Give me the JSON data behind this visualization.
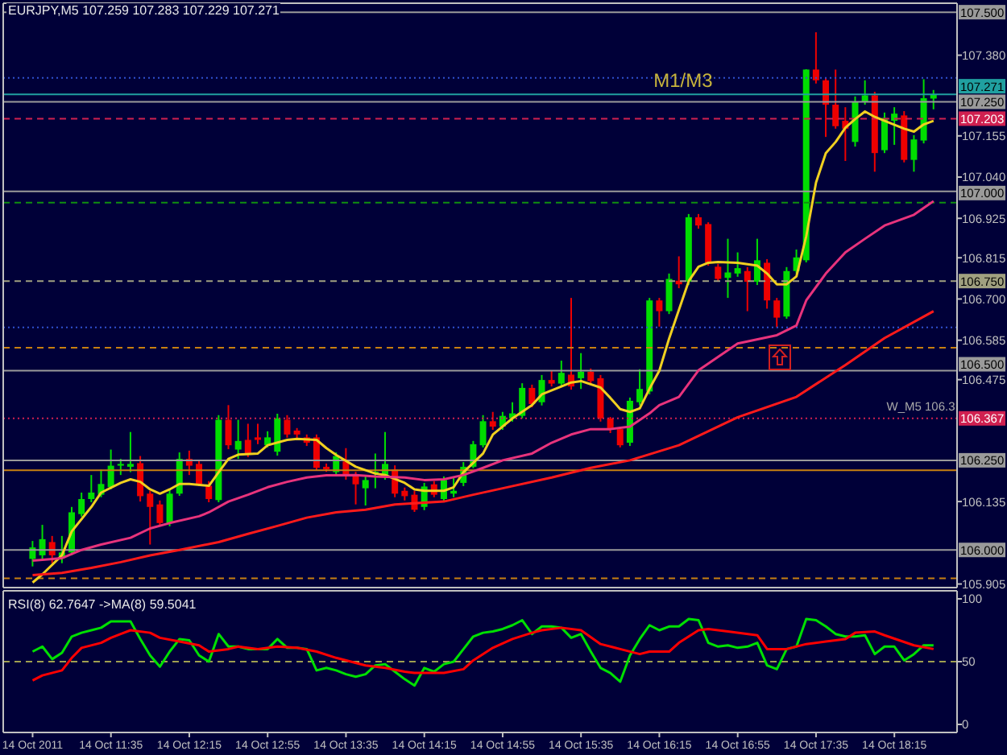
{
  "chart_data": [
    {
      "type": "candlestick",
      "title": "EURJPY,M5 107.259 107.283 107.229 107.271",
      "tick_labels": "y",
      "x": [
        "2011-10-14T10:55",
        "2011-10-14T11:00",
        "2011-10-14T11:05",
        "2011-10-14T11:10",
        "2011-10-14T11:15",
        "2011-10-14T11:20",
        "2011-10-14T11:25",
        "2011-10-14T11:30",
        "2011-10-14T11:35",
        "2011-10-14T11:40",
        "2011-10-14T11:45",
        "2011-10-14T11:50",
        "2011-10-14T11:55",
        "2011-10-14T12:00",
        "2011-10-14T12:05",
        "2011-10-14T12:10",
        "2011-10-14T12:15",
        "2011-10-14T12:20",
        "2011-10-14T12:25",
        "2011-10-14T12:30",
        "2011-10-14T12:35",
        "2011-10-14T12:40",
        "2011-10-14T12:45",
        "2011-10-14T12:50",
        "2011-10-14T12:55",
        "2011-10-14T13:00",
        "2011-10-14T13:05",
        "2011-10-14T13:10",
        "2011-10-14T13:15",
        "2011-10-14T13:20",
        "2011-10-14T13:25",
        "2011-10-14T13:30",
        "2011-10-14T13:35",
        "2011-10-14T13:40",
        "2011-10-14T13:45",
        "2011-10-14T13:50",
        "2011-10-14T13:55",
        "2011-10-14T14:00",
        "2011-10-14T14:05",
        "2011-10-14T14:10",
        "2011-10-14T14:15",
        "2011-10-14T14:20",
        "2011-10-14T14:25",
        "2011-10-14T14:30",
        "2011-10-14T14:35",
        "2011-10-14T14:40",
        "2011-10-14T14:45",
        "2011-10-14T14:50",
        "2011-10-14T14:55",
        "2011-10-14T15:00",
        "2011-10-14T15:05",
        "2011-10-14T15:10",
        "2011-10-14T15:15",
        "2011-10-14T15:20",
        "2011-10-14T15:25",
        "2011-10-14T15:30",
        "2011-10-14T15:35",
        "2011-10-14T15:40",
        "2011-10-14T15:45",
        "2011-10-14T15:50",
        "2011-10-14T15:55",
        "2011-10-14T16:00",
        "2011-10-14T16:05",
        "2011-10-14T16:10",
        "2011-10-14T16:15",
        "2011-10-14T16:20",
        "2011-10-14T16:25",
        "2011-10-14T16:30",
        "2011-10-14T16:35",
        "2011-10-14T16:40",
        "2011-10-14T16:45",
        "2011-10-14T16:50",
        "2011-10-14T16:55",
        "2011-10-14T17:00",
        "2011-10-14T17:05",
        "2011-10-14T17:10",
        "2011-10-14T17:15",
        "2011-10-14T17:20",
        "2011-10-14T17:25",
        "2011-10-14T17:30",
        "2011-10-14T17:35",
        "2011-10-14T17:40",
        "2011-10-14T17:45",
        "2011-10-14T17:50",
        "2011-10-14T17:55",
        "2011-10-14T18:00",
        "2011-10-14T18:05",
        "2011-10-14T18:10",
        "2011-10-14T18:15",
        "2011-10-14T18:20",
        "2011-10-14T18:25",
        "2011-10-14T18:30",
        "2011-10-14T18:35"
      ],
      "ohlc": [
        [
          105.975,
          106.025,
          105.954,
          106.007
        ],
        [
          105.985,
          106.07,
          105.972,
          106.03
        ],
        [
          106.022,
          106.039,
          105.963,
          105.985
        ],
        [
          105.977,
          106.039,
          105.963,
          105.993
        ],
        [
          105.993,
          106.12,
          105.985,
          106.105
        ],
        [
          106.1,
          106.16,
          106.093,
          106.142
        ],
        [
          106.142,
          106.209,
          106.133,
          106.16
        ],
        [
          106.154,
          106.224,
          106.147,
          106.184
        ],
        [
          106.175,
          106.28,
          106.169,
          106.235
        ],
        [
          106.235,
          106.254,
          106.209,
          106.24
        ],
        [
          106.232,
          106.329,
          106.217,
          106.24
        ],
        [
          106.242,
          106.262,
          106.135,
          106.15
        ],
        [
          106.157,
          106.165,
          106.015,
          106.12
        ],
        [
          106.127,
          106.138,
          106.066,
          106.075
        ],
        [
          106.075,
          106.169,
          106.066,
          106.157
        ],
        [
          106.157,
          106.272,
          106.151,
          106.254
        ],
        [
          106.254,
          106.277,
          106.209,
          106.235
        ],
        [
          106.24,
          106.25,
          106.178,
          106.184
        ],
        [
          106.179,
          106.192,
          106.133,
          106.142
        ],
        [
          106.139,
          106.376,
          106.133,
          106.363
        ],
        [
          106.363,
          106.404,
          106.281,
          106.292
        ],
        [
          106.28,
          106.363,
          106.254,
          106.304
        ],
        [
          106.307,
          106.352,
          106.259,
          106.269
        ],
        [
          106.314,
          106.352,
          106.295,
          106.307
        ],
        [
          106.292,
          106.331,
          106.286,
          106.314
        ],
        [
          106.274,
          106.38,
          106.263,
          106.367
        ],
        [
          106.363,
          106.376,
          106.313,
          106.322
        ],
        [
          106.333,
          106.34,
          106.308,
          106.322
        ],
        [
          106.314,
          106.322,
          106.29,
          106.299
        ],
        [
          106.314,
          106.322,
          106.223,
          106.229
        ],
        [
          106.232,
          106.241,
          106.218,
          106.225
        ],
        [
          106.217,
          106.272,
          106.209,
          106.262
        ],
        [
          106.247,
          106.284,
          106.196,
          106.205
        ],
        [
          106.209,
          106.218,
          106.127,
          106.183
        ],
        [
          106.172,
          106.205,
          106.124,
          106.195
        ],
        [
          106.214,
          106.269,
          106.172,
          106.218
        ],
        [
          106.205,
          106.329,
          106.196,
          106.24
        ],
        [
          106.224,
          106.236,
          106.147,
          106.157
        ],
        [
          106.165,
          106.174,
          106.138,
          106.15
        ],
        [
          106.154,
          106.165,
          106.106,
          106.112
        ],
        [
          106.12,
          106.187,
          106.111,
          106.177
        ],
        [
          106.183,
          106.192,
          106.147,
          106.154
        ],
        [
          106.142,
          106.205,
          106.133,
          106.195
        ],
        [
          106.157,
          106.202,
          106.147,
          106.165
        ],
        [
          106.187,
          106.245,
          106.178,
          106.232
        ],
        [
          106.232,
          106.304,
          106.228,
          106.295
        ],
        [
          106.292,
          106.376,
          106.286,
          106.359
        ],
        [
          106.359,
          106.385,
          106.335,
          106.344
        ],
        [
          106.344,
          106.385,
          106.335,
          106.374
        ],
        [
          106.367,
          106.412,
          106.358,
          106.381
        ],
        [
          106.374,
          106.465,
          106.367,
          106.452
        ],
        [
          106.452,
          106.461,
          106.398,
          106.407
        ],
        [
          106.412,
          106.488,
          106.403,
          106.474
        ],
        [
          106.474,
          106.501,
          106.456,
          106.464
        ],
        [
          106.464,
          106.528,
          106.456,
          106.494
        ],
        [
          106.489,
          106.703,
          106.447,
          106.456
        ],
        [
          106.479,
          106.549,
          106.449,
          106.497
        ],
        [
          106.497,
          106.506,
          106.461,
          106.471
        ],
        [
          106.479,
          106.488,
          106.358,
          106.367
        ],
        [
          106.367,
          106.371,
          106.326,
          106.337
        ],
        [
          106.337,
          106.344,
          106.286,
          106.292
        ],
        [
          106.299,
          106.425,
          106.29,
          106.416
        ],
        [
          106.412,
          106.504,
          106.403,
          106.449
        ],
        [
          106.442,
          106.703,
          106.434,
          106.696
        ],
        [
          106.696,
          106.703,
          106.623,
          106.666
        ],
        [
          106.666,
          106.771,
          106.658,
          106.756
        ],
        [
          106.751,
          106.819,
          106.73,
          106.741
        ],
        [
          106.748,
          106.937,
          106.739,
          106.928
        ],
        [
          106.928,
          106.937,
          106.896,
          106.905
        ],
        [
          106.909,
          106.914,
          106.793,
          106.801
        ],
        [
          106.79,
          106.798,
          106.748,
          106.756
        ],
        [
          106.759,
          106.868,
          106.703,
          106.774
        ],
        [
          106.771,
          106.83,
          106.762,
          106.786
        ],
        [
          106.778,
          106.789,
          106.666,
          106.748
        ],
        [
          106.748,
          106.868,
          106.739,
          106.808
        ],
        [
          106.801,
          106.811,
          106.673,
          106.696
        ],
        [
          106.696,
          106.703,
          106.621,
          106.648
        ],
        [
          106.651,
          106.789,
          106.645,
          106.778
        ],
        [
          106.778,
          106.838,
          106.771,
          106.816
        ],
        [
          106.808,
          107.341,
          106.802,
          107.34
        ],
        [
          107.34,
          107.444,
          107.301,
          107.31
        ],
        [
          107.31,
          107.318,
          107.152,
          107.242
        ],
        [
          107.242,
          107.34,
          107.175,
          107.182
        ],
        [
          107.197,
          107.235,
          107.085,
          107.175
        ],
        [
          107.138,
          107.265,
          107.125,
          107.25
        ],
        [
          107.25,
          107.31,
          107.242,
          107.268
        ],
        [
          107.268,
          107.278,
          107.055,
          107.107
        ],
        [
          107.115,
          107.22,
          107.107,
          107.205
        ],
        [
          107.197,
          107.235,
          107.13,
          107.217
        ],
        [
          107.212,
          107.224,
          107.081,
          107.088
        ],
        [
          107.088,
          107.157,
          107.055,
          107.145
        ],
        [
          107.142,
          107.313,
          107.134,
          107.26
        ],
        [
          107.259,
          107.283,
          107.229,
          107.271
        ]
      ],
      "colors": [
        "#00dd00",
        "#00dd00",
        "#ee0000",
        "#00dd00",
        "#00dd00",
        "#00dd00",
        "#00dd00",
        "#00dd00",
        "#00dd00",
        "#00dd00",
        "#00dd00",
        "#ee0000",
        "#ee0000",
        "#ee0000",
        "#00dd00",
        "#00dd00",
        "#ee0000",
        "#ee0000",
        "#ee0000",
        "#00dd00",
        "#ee0000",
        "#00dd00",
        "#ee0000",
        "#ee0000",
        "#00dd00",
        "#00dd00",
        "#ee0000",
        "#ee0000",
        "#ee0000",
        "#ee0000",
        "#ee0000",
        "#00dd00",
        "#ee0000",
        "#ee0000",
        "#00dd00",
        "#00dd00",
        "#00dd00",
        "#ee0000",
        "#ee0000",
        "#ee0000",
        "#00dd00",
        "#ee0000",
        "#00dd00",
        "#00dd00",
        "#00dd00",
        "#00dd00",
        "#00dd00",
        "#ee0000",
        "#00dd00",
        "#00dd00",
        "#00dd00",
        "#ee0000",
        "#00dd00",
        "#ee0000",
        "#00dd00",
        "#ee0000",
        "#00dd00",
        "#ee0000",
        "#ee0000",
        "#ee0000",
        "#ee0000",
        "#00dd00",
        "#00dd00",
        "#00dd00",
        "#ee0000",
        "#00dd00",
        "#ee0000",
        "#00dd00",
        "#ee0000",
        "#ee0000",
        "#ee0000",
        "#00dd00",
        "#00dd00",
        "#ee0000",
        "#00dd00",
        "#ee0000",
        "#ee0000",
        "#00dd00",
        "#00dd00",
        "#00dd00",
        "#ee0000",
        "#ee0000",
        "#ee0000",
        "#ee0000",
        "#00dd00",
        "#00dd00",
        "#ee0000",
        "#00dd00",
        "#00dd00",
        "#ee0000",
        "#00dd00",
        "#00dd00",
        "#00dd00"
      ],
      "xlim": [
        "2011-10-14T10:40",
        "2011-10-14T18:47"
      ],
      "ylim": [
        105.895,
        107.525
      ],
      "yticks": [
        {
          "value": 107.38,
          "label": "107.380"
        },
        107.155,
        {
          "value": 107.04,
          "label": "107.040"
        },
        106.925,
        106.815,
        {
          "value": 106.7,
          "label": "106.700"
        },
        106.585,
        106.475,
        106.135,
        105.905
      ],
      "series": [
        {
          "type": "line",
          "color": "#f0d020",
          "x": [
            "2011-10-14T10:55",
            "2011-10-14T11:00",
            "2011-10-14T11:10",
            "2011-10-14T11:15",
            "2011-10-14T11:25",
            "2011-10-14T11:30",
            "2011-10-14T11:40",
            "2011-10-14T11:45",
            "2011-10-14T11:50",
            "2011-10-14T11:55",
            "2011-10-14T12:00",
            "2011-10-14T12:05",
            "2011-10-14T12:10",
            "2011-10-14T12:15",
            "2011-10-14T12:25",
            "2011-10-14T12:30",
            "2011-10-14T12:35",
            "2011-10-14T12:40",
            "2011-10-14T12:50",
            "2011-10-14T12:55",
            "2011-10-14T13:05",
            "2011-10-14T13:10",
            "2011-10-14T13:20",
            "2011-10-14T13:25",
            "2011-10-14T13:30",
            "2011-10-14T13:40",
            "2011-10-14T13:50",
            "2011-10-14T13:55",
            "2011-10-14T14:05",
            "2011-10-14T14:10",
            "2011-10-14T14:15",
            "2011-10-14T14:25",
            "2011-10-14T14:30",
            "2011-10-14T14:35",
            "2011-10-14T14:45",
            "2011-10-14T14:50",
            "2011-10-14T15:00",
            "2011-10-14T15:10",
            "2011-10-14T15:15",
            "2011-10-14T15:25",
            "2011-10-14T15:30",
            "2011-10-14T15:35",
            "2011-10-14T15:45",
            "2011-10-14T15:50",
            "2011-10-14T15:55",
            "2011-10-14T16:00",
            "2011-10-14T16:05",
            "2011-10-14T16:10",
            "2011-10-14T16:15",
            "2011-10-14T16:20",
            "2011-10-14T16:30",
            "2011-10-14T16:35",
            "2011-10-14T16:40",
            "2011-10-14T16:45",
            "2011-10-14T16:55",
            "2011-10-14T17:05",
            "2011-10-14T17:10",
            "2011-10-14T17:15",
            "2011-10-14T17:20",
            "2011-10-14T17:25",
            "2011-10-14T17:30",
            "2011-10-14T17:35",
            "2011-10-14T17:40",
            "2011-10-14T17:45",
            "2011-10-14T17:50",
            "2011-10-14T17:55",
            "2011-10-14T18:00",
            "2011-10-14T18:05",
            "2011-10-14T18:10",
            "2011-10-14T18:20",
            "2011-10-14T18:25",
            "2011-10-14T18:30",
            "2011-10-14T18:35"
          ],
          "values": [
            105.909,
            105.932,
            105.985,
            106.052,
            106.12,
            106.16,
            106.187,
            106.197,
            106.19,
            106.169,
            106.157,
            106.169,
            106.184,
            106.184,
            106.179,
            106.217,
            106.254,
            106.266,
            106.269,
            106.292,
            106.307,
            106.31,
            106.307,
            106.284,
            106.265,
            106.232,
            106.213,
            106.209,
            106.187,
            106.169,
            106.165,
            106.165,
            106.175,
            106.217,
            106.269,
            106.322,
            106.367,
            106.404,
            106.434,
            106.456,
            106.467,
            106.471,
            106.453,
            106.424,
            106.393,
            106.385,
            106.395,
            106.45,
            106.5,
            106.59,
            106.75,
            106.79,
            106.801,
            106.803,
            106.801,
            106.793,
            106.771,
            106.741,
            106.741,
            106.763,
            106.875,
            107.025,
            107.107,
            107.138,
            107.178,
            107.202,
            107.223,
            107.208,
            107.197,
            107.175,
            107.167,
            107.187,
            107.197
          ]
        },
        {
          "type": "line",
          "color": "#e8337c",
          "x": [
            "2011-10-14T10:55",
            "2011-10-14T11:10",
            "2011-10-14T11:20",
            "2011-10-14T11:30",
            "2011-10-14T11:45",
            "2011-10-14T11:55",
            "2011-10-14T12:05",
            "2011-10-14T12:20",
            "2011-10-14T12:25",
            "2011-10-14T12:35",
            "2011-10-14T12:45",
            "2011-10-14T12:55",
            "2011-10-14T13:05",
            "2011-10-14T13:15",
            "2011-10-14T13:25",
            "2011-10-14T13:40",
            "2011-10-14T13:50",
            "2011-10-14T14:05",
            "2011-10-14T14:15",
            "2011-10-14T14:25",
            "2011-10-14T14:35",
            "2011-10-14T14:45",
            "2011-10-14T14:55",
            "2011-10-14T15:10",
            "2011-10-14T15:20",
            "2011-10-14T15:30",
            "2011-10-14T15:40",
            "2011-10-14T15:50",
            "2011-10-14T16:00",
            "2011-10-14T16:10",
            "2011-10-14T16:15",
            "2011-10-14T16:25",
            "2011-10-14T16:35",
            "2011-10-14T16:55",
            "2011-10-14T17:15",
            "2011-10-14T17:25",
            "2011-10-14T17:30",
            "2011-10-14T17:40",
            "2011-10-14T17:50",
            "2011-10-14T18:00",
            "2011-10-14T18:10",
            "2011-10-14T18:25",
            "2011-10-14T18:35"
          ],
          "values": [
            105.97,
            105.977,
            106.0,
            106.015,
            106.034,
            106.06,
            106.075,
            106.094,
            106.105,
            106.135,
            106.154,
            106.175,
            106.19,
            106.202,
            106.208,
            106.209,
            106.205,
            106.202,
            106.195,
            106.197,
            106.209,
            106.229,
            106.25,
            106.269,
            106.299,
            106.322,
            106.337,
            106.337,
            106.344,
            106.381,
            106.404,
            106.427,
            106.501,
            106.576,
            106.599,
            106.626,
            106.696,
            106.771,
            106.83,
            106.868,
            106.905,
            106.935,
            106.973
          ]
        },
        {
          "type": "line",
          "color": "#ff1a1a",
          "x": [
            "2011-10-14T10:55",
            "2011-10-14T11:10",
            "2011-10-14T11:25",
            "2011-10-14T11:40",
            "2011-10-14T11:55",
            "2011-10-14T12:10",
            "2011-10-14T12:30",
            "2011-10-14T12:45",
            "2011-10-14T13:00",
            "2011-10-14T13:15",
            "2011-10-14T13:30",
            "2011-10-14T13:45",
            "2011-10-14T14:00",
            "2011-10-14T14:25",
            "2011-10-14T14:40",
            "2011-10-14T14:55",
            "2011-10-14T15:20",
            "2011-10-14T15:40",
            "2011-10-14T16:00",
            "2011-10-14T16:25",
            "2011-10-14T16:55",
            "2011-10-14T17:25",
            "2011-10-14T17:50",
            "2011-10-14T18:10",
            "2011-10-14T18:35"
          ],
          "values": [
            105.93,
            105.936,
            105.95,
            105.966,
            105.985,
            106.0,
            106.022,
            106.045,
            106.067,
            106.09,
            106.105,
            106.112,
            106.127,
            106.135,
            106.154,
            106.172,
            106.202,
            106.229,
            106.25,
            106.292,
            106.37,
            106.427,
            106.516,
            106.591,
            106.666
          ]
        }
      ],
      "ref_lines": [
        {
          "axis": "y",
          "value": 107.5,
          "label": "107.500",
          "color": "#9a9a9a"
        },
        {
          "axis": "y",
          "value": 107.317,
          "color": "#3050d0",
          "line_style": "dotted"
        },
        {
          "axis": "y",
          "value": 107.25,
          "label": "107.250",
          "color": "#9a9a9a"
        },
        {
          "axis": "y",
          "value": 107.203,
          "label": "107.203",
          "color": "#d02050",
          "line_style": "dashed"
        },
        {
          "axis": "y",
          "value": 107,
          "label": "107.000",
          "color": "#9a9a9a"
        },
        {
          "axis": "y",
          "value": 106.969,
          "color": "#109010",
          "line_style": "dashed"
        },
        {
          "axis": "y",
          "value": 106.75,
          "label": "106.750",
          "color": "#a0a080",
          "line_style": "dashed"
        },
        {
          "axis": "y",
          "value": 106.621,
          "color": "#3050d0",
          "line_style": "dotted"
        },
        {
          "axis": "y",
          "value": 106.564,
          "color": "#c88010",
          "line_style": "dashed"
        },
        {
          "axis": "y",
          "value": 106.5,
          "label": "106.500",
          "color": "#9a9a9a"
        },
        {
          "axis": "y",
          "value": 106.367,
          "label": "106.367",
          "color": "#d02050",
          "line_style": "dotted"
        },
        {
          "axis": "y",
          "value": 106.25,
          "label": "106.250",
          "color": "#9a9a9a"
        },
        {
          "axis": "y",
          "value": 106.222,
          "color": "#c88010"
        },
        {
          "axis": "y",
          "value": 106,
          "label": "106.000",
          "color": "#9a9a9a"
        },
        {
          "axis": "y",
          "value": 105.921,
          "color": "#c88010",
          "line_style": "dashed"
        },
        {
          "axis": "y",
          "value": 107.271,
          "label": "107.271",
          "color": "#20a0a0"
        }
      ],
      "annotations": [
        {
          "text": "M1/M3",
          "x": "2011-10-14T16:12",
          "y": 107.271
        },
        {
          "text": "W_M5 106.3",
          "x": "2011-10-14T18:11",
          "y": 106.367
        }
      ]
    },
    {
      "type": "line",
      "title": "RSI(8) 62.7647 ->MA(8) 59.5041",
      "x": [
        "2011-10-14T10:55",
        "2011-10-14T11:00",
        "2011-10-14T11:05",
        "2011-10-14T11:10",
        "2011-10-14T11:15",
        "2011-10-14T11:20",
        "2011-10-14T11:25",
        "2011-10-14T11:30",
        "2011-10-14T11:35",
        "2011-10-14T11:40",
        "2011-10-14T11:45",
        "2011-10-14T11:50",
        "2011-10-14T11:55",
        "2011-10-14T12:00",
        "2011-10-14T12:05",
        "2011-10-14T12:10",
        "2011-10-14T12:15",
        "2011-10-14T12:20",
        "2011-10-14T12:25",
        "2011-10-14T12:30",
        "2011-10-14T12:35",
        "2011-10-14T12:40",
        "2011-10-14T12:45",
        "2011-10-14T12:50",
        "2011-10-14T12:55",
        "2011-10-14T13:00",
        "2011-10-14T13:05",
        "2011-10-14T13:10",
        "2011-10-14T13:15",
        "2011-10-14T13:20",
        "2011-10-14T13:25",
        "2011-10-14T13:30",
        "2011-10-14T13:35",
        "2011-10-14T13:40",
        "2011-10-14T13:45",
        "2011-10-14T13:50",
        "2011-10-14T13:55",
        "2011-10-14T14:00",
        "2011-10-14T14:05",
        "2011-10-14T14:10",
        "2011-10-14T14:15",
        "2011-10-14T14:20",
        "2011-10-14T14:25",
        "2011-10-14T14:30",
        "2011-10-14T14:35",
        "2011-10-14T14:40",
        "2011-10-14T14:45",
        "2011-10-14T14:50",
        "2011-10-14T14:55",
        "2011-10-14T15:00",
        "2011-10-14T15:05",
        "2011-10-14T15:10",
        "2011-10-14T15:15",
        "2011-10-14T15:20",
        "2011-10-14T15:25",
        "2011-10-14T15:30",
        "2011-10-14T15:35",
        "2011-10-14T15:40",
        "2011-10-14T15:45",
        "2011-10-14T15:50",
        "2011-10-14T15:55",
        "2011-10-14T16:00",
        "2011-10-14T16:05",
        "2011-10-14T16:10",
        "2011-10-14T16:15",
        "2011-10-14T16:20",
        "2011-10-14T16:25",
        "2011-10-14T16:30",
        "2011-10-14T16:35",
        "2011-10-14T16:40",
        "2011-10-14T16:45",
        "2011-10-14T16:50",
        "2011-10-14T16:55",
        "2011-10-14T17:00",
        "2011-10-14T17:05",
        "2011-10-14T17:10",
        "2011-10-14T17:15",
        "2011-10-14T17:20",
        "2011-10-14T17:25",
        "2011-10-14T17:30",
        "2011-10-14T17:35",
        "2011-10-14T17:40",
        "2011-10-14T17:45",
        "2011-10-14T17:50",
        "2011-10-14T17:55",
        "2011-10-14T18:00",
        "2011-10-14T18:05",
        "2011-10-14T18:10",
        "2011-10-14T18:15",
        "2011-10-14T18:20",
        "2011-10-14T18:25",
        "2011-10-14T18:30",
        "2011-10-14T18:35"
      ],
      "xlim": [
        "2011-10-14T10:40",
        "2011-10-14T18:47"
      ],
      "xticks": [
        {
          "value": "2011-10-14T10:55",
          "label": "14 Oct 2011"
        },
        {
          "value": "2011-10-14T11:35",
          "label": "14 Oct 11:35"
        },
        {
          "value": "2011-10-14T12:15",
          "label": "14 Oct 12:15"
        },
        {
          "value": "2011-10-14T12:55",
          "label": "14 Oct 12:55"
        },
        {
          "value": "2011-10-14T13:35",
          "label": "14 Oct 13:35"
        },
        {
          "value": "2011-10-14T14:15",
          "label": "14 Oct 14:15"
        },
        {
          "value": "2011-10-14T14:55",
          "label": "14 Oct 14:55"
        },
        {
          "value": "2011-10-14T15:35",
          "label": "14 Oct 15:35"
        },
        {
          "value": "2011-10-14T16:15",
          "label": "14 Oct 16:15"
        },
        {
          "value": "2011-10-14T16:55",
          "label": "14 Oct 16:55"
        },
        {
          "value": "2011-10-14T17:35",
          "label": "14 Oct 17:35"
        },
        {
          "value": "2011-10-14T18:15",
          "label": "14 Oct 18:15"
        }
      ],
      "ylim": [
        -6.4,
        106.4
      ],
      "yticks": [
        0,
        50,
        100
      ],
      "series": [
        {
          "color": "#00e000",
          "values": [
            58,
            62,
            52,
            57,
            70,
            73,
            75,
            77,
            82,
            82,
            82,
            68,
            55,
            46,
            58,
            68,
            67,
            55,
            50,
            72,
            62,
            62,
            60,
            60,
            60,
            68,
            61,
            61,
            60,
            43,
            45,
            43,
            40,
            38,
            40,
            47,
            48,
            42,
            36,
            31,
            45,
            42,
            48,
            50,
            60,
            70,
            73,
            74,
            76,
            79,
            83,
            72,
            78,
            78,
            77,
            69,
            72,
            58,
            45,
            41,
            34,
            55,
            68,
            79,
            75,
            78,
            78,
            84,
            83,
            65,
            62,
            63,
            61,
            62,
            65,
            47,
            44,
            60,
            62,
            84,
            83,
            78,
            72,
            70,
            70,
            71,
            56,
            62,
            62,
            51,
            56,
            63,
            63
          ]
        },
        {
          "color": "#ff0000",
          "x": [
            "2011-10-14T10:55",
            "2011-10-14T11:00",
            "2011-10-14T11:10",
            "2011-10-14T11:15",
            "2011-10-14T11:20",
            "2011-10-14T11:30",
            "2011-10-14T11:35",
            "2011-10-14T11:40",
            "2011-10-14T11:45",
            "2011-10-14T11:55",
            "2011-10-14T12:00",
            "2011-10-14T12:10",
            "2011-10-14T12:20",
            "2011-10-14T12:25",
            "2011-10-14T12:35",
            "2011-10-14T12:40",
            "2011-10-14T12:50",
            "2011-10-14T13:00",
            "2011-10-14T13:10",
            "2011-10-14T13:20",
            "2011-10-14T13:30",
            "2011-10-14T13:45",
            "2011-10-14T13:55",
            "2011-10-14T14:05",
            "2011-10-14T14:10",
            "2011-10-14T14:25",
            "2011-10-14T14:35",
            "2011-10-14T14:40",
            "2011-10-14T14:50",
            "2011-10-14T15:00",
            "2011-10-14T15:10",
            "2011-10-14T15:15",
            "2011-10-14T15:25",
            "2011-10-14T15:35",
            "2011-10-14T15:45",
            "2011-10-14T15:55",
            "2011-10-14T16:05",
            "2011-10-14T16:10",
            "2011-10-14T16:20",
            "2011-10-14T16:25",
            "2011-10-14T16:35",
            "2011-10-14T16:40",
            "2011-10-14T16:50",
            "2011-10-14T17:05",
            "2011-10-14T17:10",
            "2011-10-14T17:20",
            "2011-10-14T17:30",
            "2011-10-14T17:40",
            "2011-10-14T17:50",
            "2011-10-14T17:55",
            "2011-10-14T18:05",
            "2011-10-14T18:10",
            "2011-10-14T18:25",
            "2011-10-14T18:35"
          ],
          "values": [
            35,
            39,
            43,
            53,
            61,
            65,
            69,
            72,
            75,
            73,
            69,
            66,
            63,
            58,
            60,
            62,
            60,
            62,
            61,
            58,
            53,
            47,
            45,
            42,
            41,
            41,
            44,
            51,
            61,
            68,
            73,
            75,
            77,
            75,
            64,
            60,
            56,
            58,
            58,
            65,
            75,
            76,
            74,
            71,
            60,
            60,
            64,
            66,
            68,
            73,
            74,
            71,
            63,
            60
          ]
        }
      ],
      "ref_lines": [
        {
          "axis": "y",
          "value": 50,
          "color": "#a0a050",
          "line_style": "dashed"
        }
      ]
    }
  ]
}
